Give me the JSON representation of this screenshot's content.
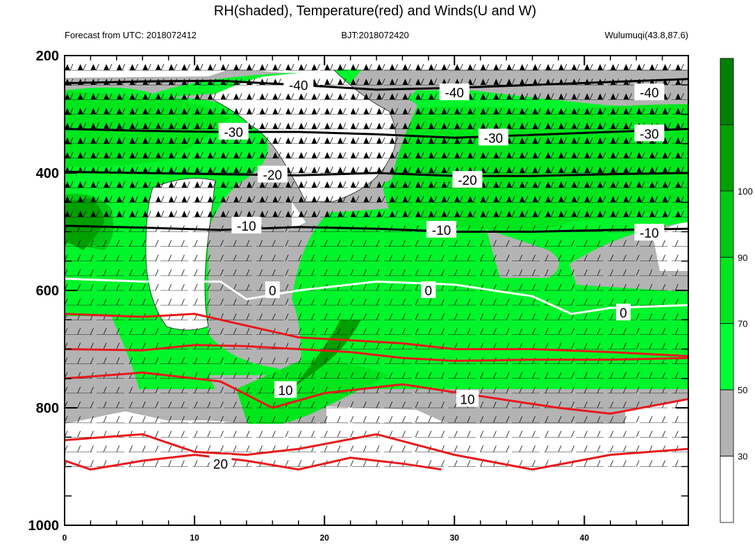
{
  "chart_data": {
    "type": "contour",
    "title": "RH(shaded), Temperature(red) and Winds(U and W)",
    "subtitle_left": "Forecast from UTC: 2018072412",
    "subtitle_center": "BJT:2018072420",
    "subtitle_right": "Wulumuqi(43.8,87.6)",
    "x_ticks": [
      0,
      10,
      20,
      30,
      40
    ],
    "xlim": [
      0,
      48
    ],
    "y_ticks": [
      200,
      400,
      600,
      800,
      1000
    ],
    "ylim": [
      200,
      1000
    ],
    "y_inverted": true,
    "colorbar": {
      "levels": [
        30,
        50,
        70,
        90,
        100
      ],
      "colors": [
        "#ffffff",
        "#b3b3b3",
        "#00ff33",
        "#00e61c",
        "#00c814",
        "#00a000",
        "#008000"
      ]
    },
    "temperature_contours": [
      {
        "label": "-40",
        "level": -40,
        "color": "#000000",
        "points": [
          [
            0,
            247
          ],
          [
            6,
            244
          ],
          [
            12,
            243
          ],
          [
            18,
            250
          ],
          [
            24,
            258
          ],
          [
            30,
            255
          ],
          [
            36,
            250
          ],
          [
            42,
            245
          ],
          [
            48,
            240
          ]
        ],
        "labels_at": [
          [
            18,
            250
          ],
          [
            30,
            263
          ],
          [
            45,
            263
          ]
        ]
      },
      {
        "label": "-30",
        "level": -30,
        "color": "#000000",
        "points": [
          [
            0,
            325
          ],
          [
            6,
            328
          ],
          [
            12,
            330
          ],
          [
            18,
            330
          ],
          [
            24,
            334
          ],
          [
            30,
            340
          ],
          [
            36,
            335
          ],
          [
            42,
            330
          ],
          [
            48,
            325
          ]
        ],
        "labels_at": [
          [
            13,
            330
          ],
          [
            33,
            340
          ],
          [
            45,
            333
          ]
        ]
      },
      {
        "label": "-20",
        "level": -20,
        "color": "#000000",
        "points": [
          [
            0,
            398
          ],
          [
            6,
            400
          ],
          [
            12,
            402
          ],
          [
            18,
            404
          ],
          [
            24,
            400
          ],
          [
            30,
            405
          ],
          [
            36,
            405
          ],
          [
            42,
            402
          ],
          [
            48,
            400
          ]
        ],
        "labels_at": [
          [
            16,
            403
          ],
          [
            31,
            412
          ]
        ]
      },
      {
        "label": "-10",
        "level": -10,
        "color": "#000000",
        "points": [
          [
            0,
            490
          ],
          [
            6,
            493
          ],
          [
            12,
            497
          ],
          [
            18,
            492
          ],
          [
            24,
            495
          ],
          [
            30,
            500
          ],
          [
            36,
            500
          ],
          [
            42,
            497
          ],
          [
            48,
            495
          ]
        ],
        "labels_at": [
          [
            14,
            490
          ],
          [
            29,
            497
          ],
          [
            45,
            502
          ]
        ]
      },
      {
        "label": "0",
        "level": 0,
        "color": "#ffffff",
        "points": [
          [
            0,
            580
          ],
          [
            6,
            585
          ],
          [
            12,
            585
          ],
          [
            14,
            615
          ],
          [
            18,
            600
          ],
          [
            24,
            585
          ],
          [
            30,
            590
          ],
          [
            36,
            610
          ],
          [
            39,
            640
          ],
          [
            42,
            630
          ],
          [
            48,
            625
          ]
        ],
        "labels_at": [
          [
            16,
            600
          ],
          [
            28,
            600
          ],
          [
            43,
            638
          ]
        ]
      },
      {
        "label": "10",
        "level": 10,
        "color": "#e8181b",
        "points": [
          [
            0,
            750
          ],
          [
            6,
            740
          ],
          [
            12,
            755
          ],
          [
            16,
            800
          ],
          [
            20,
            775
          ],
          [
            26,
            760
          ],
          [
            32,
            780
          ],
          [
            38,
            800
          ],
          [
            42,
            810
          ],
          [
            48,
            785
          ]
        ],
        "labels_at": [
          [
            17,
            770
          ],
          [
            31,
            785
          ]
        ]
      },
      {
        "label": "20",
        "level": 20,
        "color": "#e8181b",
        "points": [
          [
            0,
            855
          ],
          [
            6,
            845
          ],
          [
            10,
            875
          ],
          [
            14,
            880
          ],
          [
            18,
            870
          ],
          [
            24,
            845
          ],
          [
            30,
            880
          ],
          [
            36,
            905
          ],
          [
            42,
            880
          ],
          [
            48,
            870
          ]
        ],
        "labels_at": [
          [
            12,
            895
          ]
        ]
      }
    ],
    "extra_red_lines": [
      [
        [
          0,
          640
        ],
        [
          6,
          645
        ],
        [
          10,
          640
        ],
        [
          14,
          660
        ],
        [
          18,
          680
        ],
        [
          22,
          685
        ],
        [
          26,
          690
        ],
        [
          30,
          700
        ],
        [
          36,
          700
        ],
        [
          42,
          705
        ],
        [
          48,
          712
        ]
      ],
      [
        [
          0,
          700
        ],
        [
          6,
          702
        ],
        [
          10,
          693
        ],
        [
          14,
          695
        ],
        [
          18,
          700
        ],
        [
          22,
          705
        ],
        [
          26,
          715
        ],
        [
          30,
          720
        ],
        [
          36,
          718
        ],
        [
          42,
          718
        ],
        [
          48,
          715
        ]
      ],
      [
        [
          0,
          890
        ],
        [
          2,
          905
        ],
        [
          6,
          890
        ],
        [
          10,
          880
        ],
        [
          14,
          890
        ],
        [
          18,
          905
        ],
        [
          22,
          885
        ],
        [
          26,
          895
        ],
        [
          29,
          905
        ]
      ]
    ]
  }
}
